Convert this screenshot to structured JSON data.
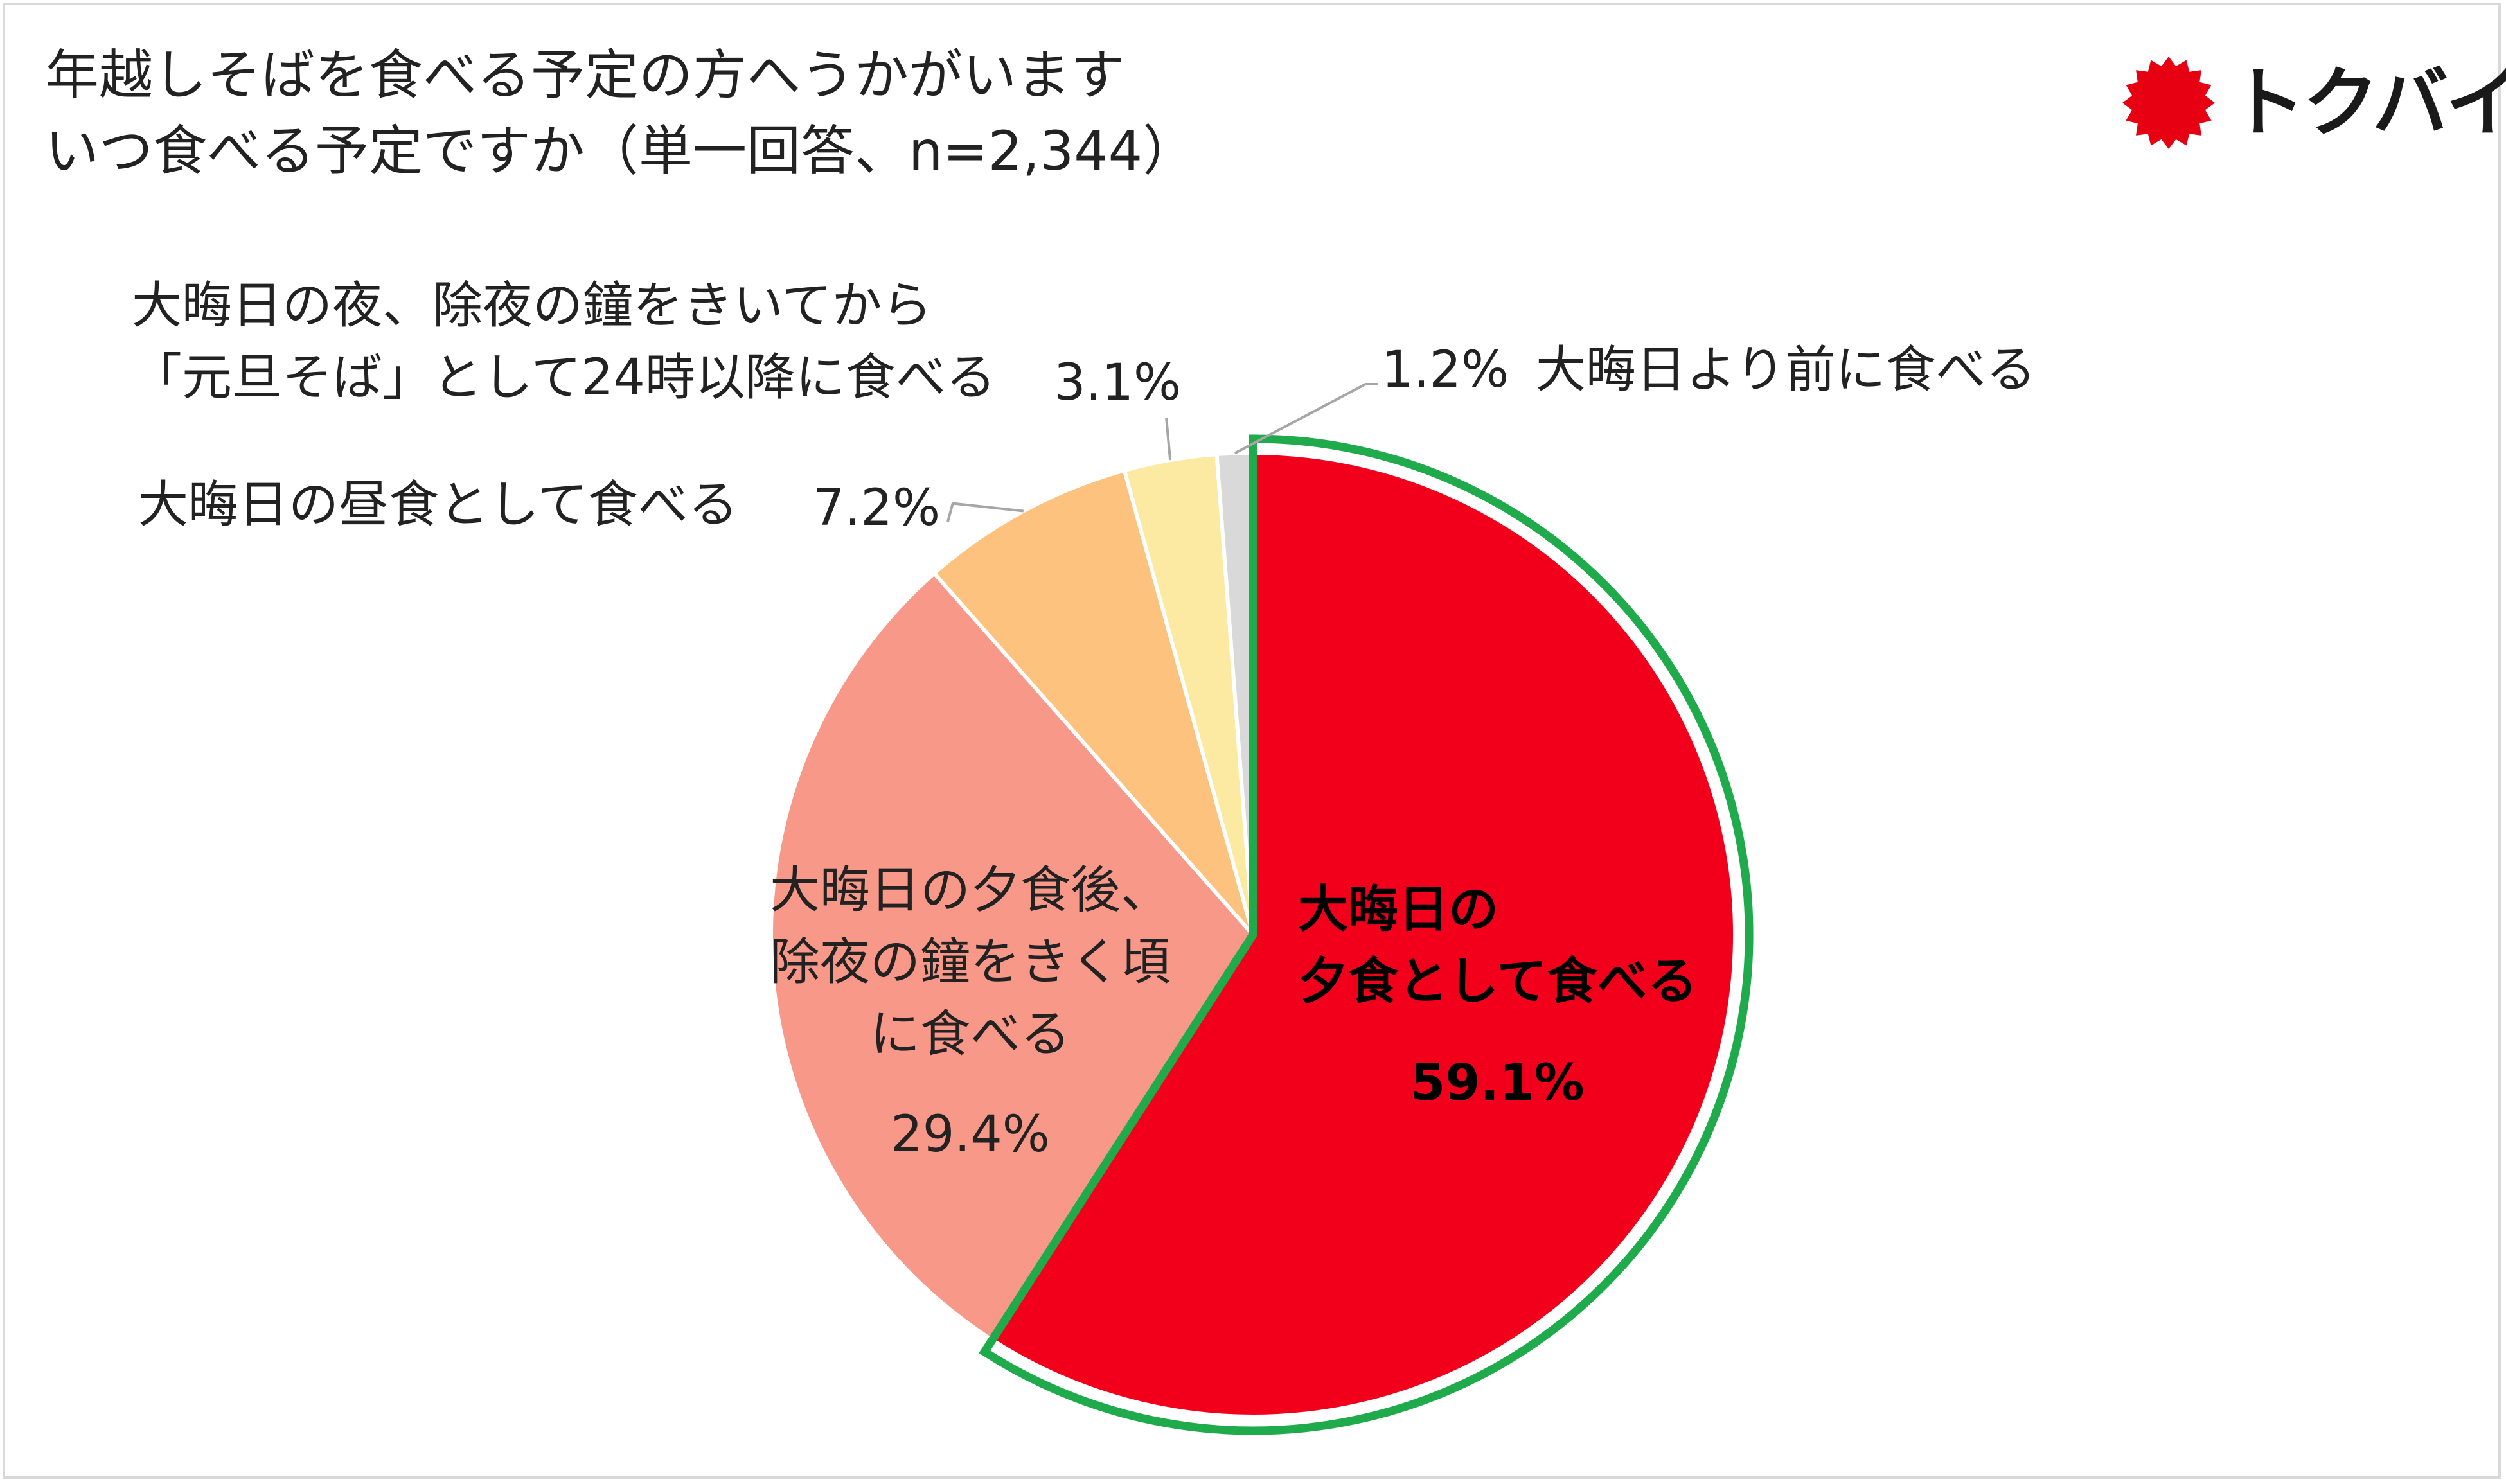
{
  "title": {
    "line1": "年越しそばを食べる予定の方へうかがいます",
    "line2": "いつ食べる予定ですか（単一回答、n=2,344）"
  },
  "logo": {
    "text": "トクバイ",
    "icon": "starburst-icon",
    "color": "#e60012"
  },
  "chart_data": {
    "type": "pie",
    "title": "年越しそばを食べる予定の方へうかがいます いつ食べる予定ですか（単一回答、n=2,344）",
    "unit": "%",
    "start_angle_deg": 0,
    "direction": "clockwise",
    "highlight": "大晦日の夕食として食べる",
    "highlight_color": "#1fab4b",
    "slices": [
      {
        "label_lines": [
          "大晦日の",
          "夕食として食べる"
        ],
        "label": "大晦日の夕食として食べる",
        "value": 59.1,
        "value_text": "59.1%",
        "color": "#f2001b"
      },
      {
        "label_lines": [
          "大晦日の夕食後、",
          "除夜の鐘をきく頃",
          "に食べる"
        ],
        "label": "大晦日の夕食後、除夜の鐘をきく頃に食べる",
        "value": 29.4,
        "value_text": "29.4%",
        "color": "#f79889"
      },
      {
        "label_lines": [
          "大晦日の昼食として食べる"
        ],
        "label": "大晦日の昼食として食べる",
        "value": 7.2,
        "value_text": "7.2%",
        "color": "#fcc27e"
      },
      {
        "label_lines": [
          "大晦日の夜、除夜の鐘をきいてから",
          "「元旦そば」として24時以降に食べる"
        ],
        "label": "大晦日の夜、除夜の鐘をきいてから「元旦そば」として24時以降に食べる",
        "value": 3.1,
        "value_text": "3.1%",
        "color": "#fce9a2"
      },
      {
        "label_lines": [
          "大晦日より前に食べる"
        ],
        "label": "大晦日より前に食べる",
        "value": 1.2,
        "value_text": "1.2%",
        "color": "#d9d9d9"
      }
    ]
  }
}
